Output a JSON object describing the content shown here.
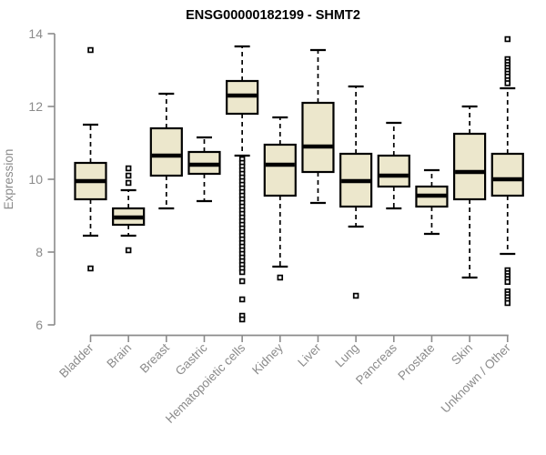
{
  "colors": {
    "background": "#FFFFFF",
    "box_fill": "#ECE7CC",
    "line": "#000000",
    "axis": "#8B8B8B",
    "tick_text": "#8B8B8B",
    "title_text": "#000000"
  },
  "chart_data": {
    "type": "boxplot",
    "title": "ENSG00000182199 - SHMT2",
    "xlabel": "",
    "ylabel": "Expression",
    "ylim": [
      6,
      14
    ],
    "yticks": [
      6,
      8,
      10,
      12,
      14
    ],
    "grid": false,
    "legend": "none",
    "categories": [
      "Bladder",
      "Brain",
      "Breast",
      "Gastric",
      "Hematopoietic cells",
      "Kidney",
      "Liver",
      "Lung",
      "Pancreas",
      "Prostate",
      "Skin",
      "Unknown / Other"
    ],
    "series": [
      {
        "name": "Bladder",
        "whisker_low": 8.45,
        "q1": 9.45,
        "median": 9.95,
        "q3": 10.45,
        "whisker_high": 11.5,
        "outliers": [
          13.55,
          7.55
        ]
      },
      {
        "name": "Brain",
        "whisker_low": 8.45,
        "q1": 8.75,
        "median": 8.95,
        "q3": 9.2,
        "whisker_high": 9.7,
        "outliers": [
          10.3,
          10.1,
          9.9,
          8.05
        ]
      },
      {
        "name": "Breast",
        "whisker_low": 9.2,
        "q1": 10.1,
        "median": 10.65,
        "q3": 11.4,
        "whisker_high": 12.35,
        "outliers": []
      },
      {
        "name": "Gastric",
        "whisker_low": 9.4,
        "q1": 10.15,
        "median": 10.4,
        "q3": 10.75,
        "whisker_high": 11.15,
        "outliers": []
      },
      {
        "name": "Hematopoietic cells",
        "whisker_low": 10.65,
        "q1": 11.8,
        "median": 12.3,
        "q3": 12.7,
        "whisker_high": 13.65,
        "outliers": [
          10.55,
          10.45,
          10.35,
          10.25,
          10.15,
          10.05,
          9.95,
          9.85,
          9.75,
          9.65,
          9.55,
          9.45,
          9.35,
          9.25,
          9.15,
          9.05,
          8.95,
          8.85,
          8.75,
          8.65,
          8.55,
          8.45,
          8.35,
          8.25,
          8.15,
          8.05,
          7.95,
          7.85,
          7.75,
          7.65,
          7.55,
          7.45,
          7.2,
          6.7,
          6.25,
          6.15
        ]
      },
      {
        "name": "Kidney",
        "whisker_low": 7.6,
        "q1": 9.55,
        "median": 10.4,
        "q3": 10.95,
        "whisker_high": 11.7,
        "outliers": [
          7.3
        ]
      },
      {
        "name": "Liver",
        "whisker_low": 9.35,
        "q1": 10.2,
        "median": 10.9,
        "q3": 12.1,
        "whisker_high": 13.55,
        "outliers": []
      },
      {
        "name": "Lung",
        "whisker_low": 8.7,
        "q1": 9.25,
        "median": 9.95,
        "q3": 10.7,
        "whisker_high": 12.55,
        "outliers": [
          6.8
        ]
      },
      {
        "name": "Pancreas",
        "whisker_low": 9.2,
        "q1": 9.8,
        "median": 10.1,
        "q3": 10.65,
        "whisker_high": 11.55,
        "outliers": []
      },
      {
        "name": "Prostate",
        "whisker_low": 8.5,
        "q1": 9.25,
        "median": 9.55,
        "q3": 9.8,
        "whisker_high": 10.25,
        "outliers": []
      },
      {
        "name": "Skin",
        "whisker_low": 7.3,
        "q1": 9.45,
        "median": 10.2,
        "q3": 11.25,
        "whisker_high": 12.0,
        "outliers": []
      },
      {
        "name": "Unknown / Other",
        "whisker_low": 7.95,
        "q1": 9.55,
        "median": 10.0,
        "q3": 10.7,
        "whisker_high": 12.5,
        "outliers": [
          13.85,
          13.3,
          13.22,
          13.14,
          13.06,
          12.98,
          12.9,
          12.82,
          12.72,
          12.64,
          7.5,
          7.42,
          7.34,
          7.26,
          7.18,
          6.92,
          6.84,
          6.76,
          6.68,
          6.6
        ]
      }
    ]
  }
}
